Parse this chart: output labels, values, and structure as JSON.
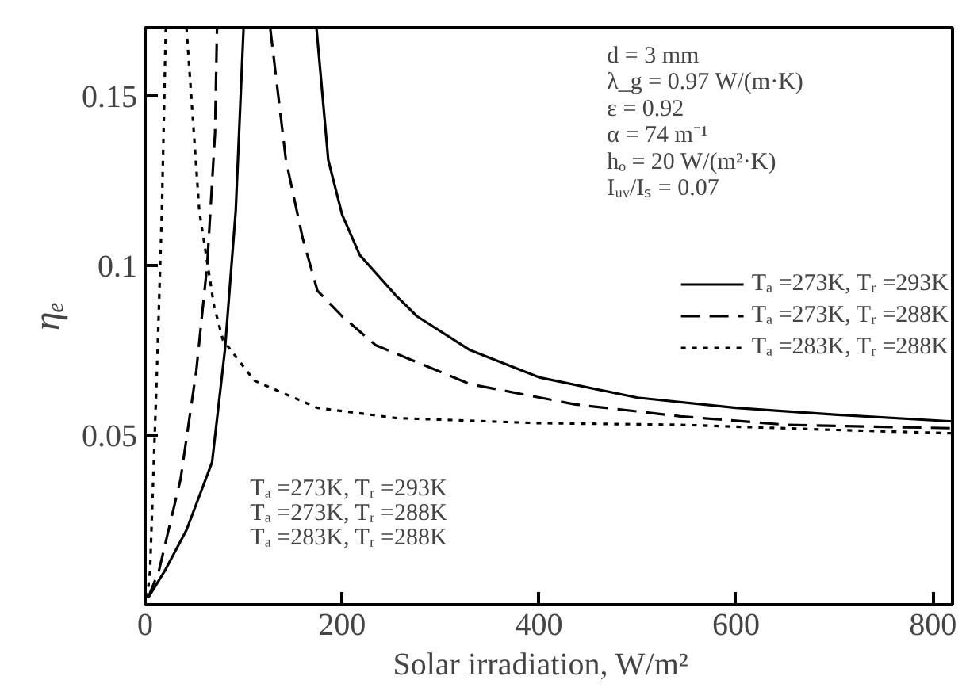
{
  "chart_data": {
    "type": "line",
    "xlabel": "Solar irradiation,   W/m²",
    "ylabel": "ηₑ",
    "xlim": [
      0,
      820
    ],
    "ylim": [
      0,
      0.17
    ],
    "xticks": [
      0,
      200,
      400,
      600,
      800
    ],
    "yticks": [
      0.05,
      0.1,
      0.15
    ],
    "grid": false,
    "legend": "right",
    "series": [
      {
        "name": "Tₐ =273K, Tᵣ =293K",
        "color": "#000000",
        "line_style": "solid",
        "x": [
          174,
          186,
          200,
          218,
          255,
          276,
          330,
          400,
          500,
          600,
          700,
          820
        ],
        "values": [
          0.17,
          0.131,
          0.115,
          0.103,
          0.091,
          0.085,
          0.075,
          0.067,
          0.061,
          0.058,
          0.056,
          0.054
        ]
      },
      {
        "name": "Tₐ =273K, Tᵣ =288K",
        "color": "#000000",
        "line_style": "dashed",
        "x": [
          127,
          143,
          160,
          175,
          200,
          234,
          330,
          437,
          544,
          651,
          820
        ],
        "values": [
          0.17,
          0.131,
          0.108,
          0.0925,
          0.085,
          0.0765,
          0.065,
          0.059,
          0.0555,
          0.053,
          0.052
        ]
      },
      {
        "name": "Tₐ =283K, Tᵣ =288K",
        "color": "#000000",
        "line_style": "dotted",
        "x": [
          42,
          55,
          70,
          79,
          111,
          175,
          255,
          400,
          544,
          700,
          820
        ],
        "values": [
          0.17,
          0.116,
          0.088,
          0.078,
          0.066,
          0.058,
          0.055,
          0.0535,
          0.053,
          0.0515,
          0.0505
        ]
      },
      {
        "color": "#000000",
        "line_style": "solid",
        "x": [
          3,
          20,
          42,
          68,
          81,
          92,
          100
        ],
        "values": [
          0.002,
          0.01,
          0.022,
          0.042,
          0.075,
          0.116,
          0.17
        ]
      },
      {
        "color": "#000000",
        "line_style": "dashed",
        "x": [
          3,
          14,
          36,
          52,
          63,
          71,
          73
        ],
        "values": [
          0.002,
          0.01,
          0.037,
          0.069,
          0.1,
          0.139,
          0.17
        ]
      },
      {
        "color": "#000000",
        "line_style": "dotted",
        "x": [
          2,
          5,
          12,
          17,
          21
        ],
        "values": [
          0.002,
          0.01,
          0.069,
          0.116,
          0.17
        ]
      }
    ],
    "annotations": [
      "d = 3 mm",
      "λ_g = 0.97 W/(m·K)",
      "ε = 0.92",
      "α = 74 m⁻¹",
      "hₒ = 20 W/(m²·K)",
      "Iᵤᵥ/Iₛ = 0.07",
      "Tₐ =273K, Tᵣ =293K",
      "Tₐ =273K, Tᵣ =288K",
      "Tₐ =283K, Tᵣ =288K"
    ]
  }
}
